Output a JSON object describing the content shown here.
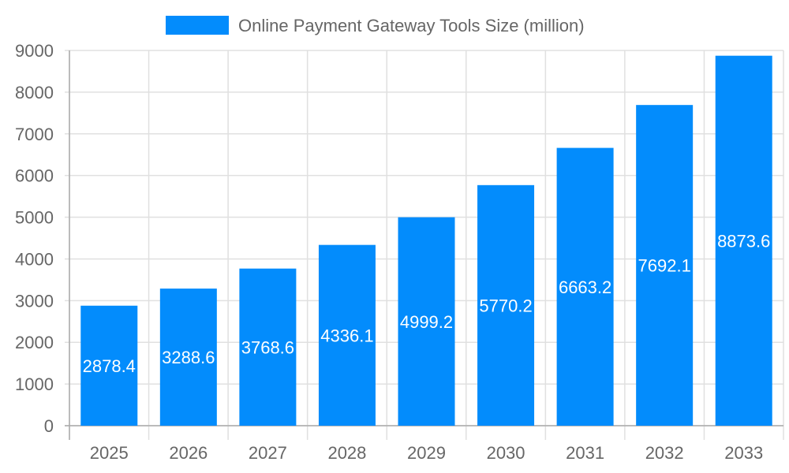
{
  "chart_data": {
    "type": "bar",
    "categories": [
      "2025",
      "2026",
      "2027",
      "2028",
      "2029",
      "2030",
      "2031",
      "2032",
      "2033"
    ],
    "series": [
      {
        "name": "Online Payment Gateway Tools Size (million)",
        "values": [
          2878.4,
          3288.6,
          3768.6,
          4336.1,
          4999.2,
          5770.2,
          6663.2,
          7692.1,
          8873.6
        ],
        "color": "#038cfc"
      }
    ],
    "ylim": [
      0,
      9000
    ],
    "yticks": [
      0,
      1000,
      2000,
      3000,
      4000,
      5000,
      6000,
      7000,
      8000,
      9000
    ],
    "grid": true,
    "legend_position": "top",
    "data_labels": true
  }
}
